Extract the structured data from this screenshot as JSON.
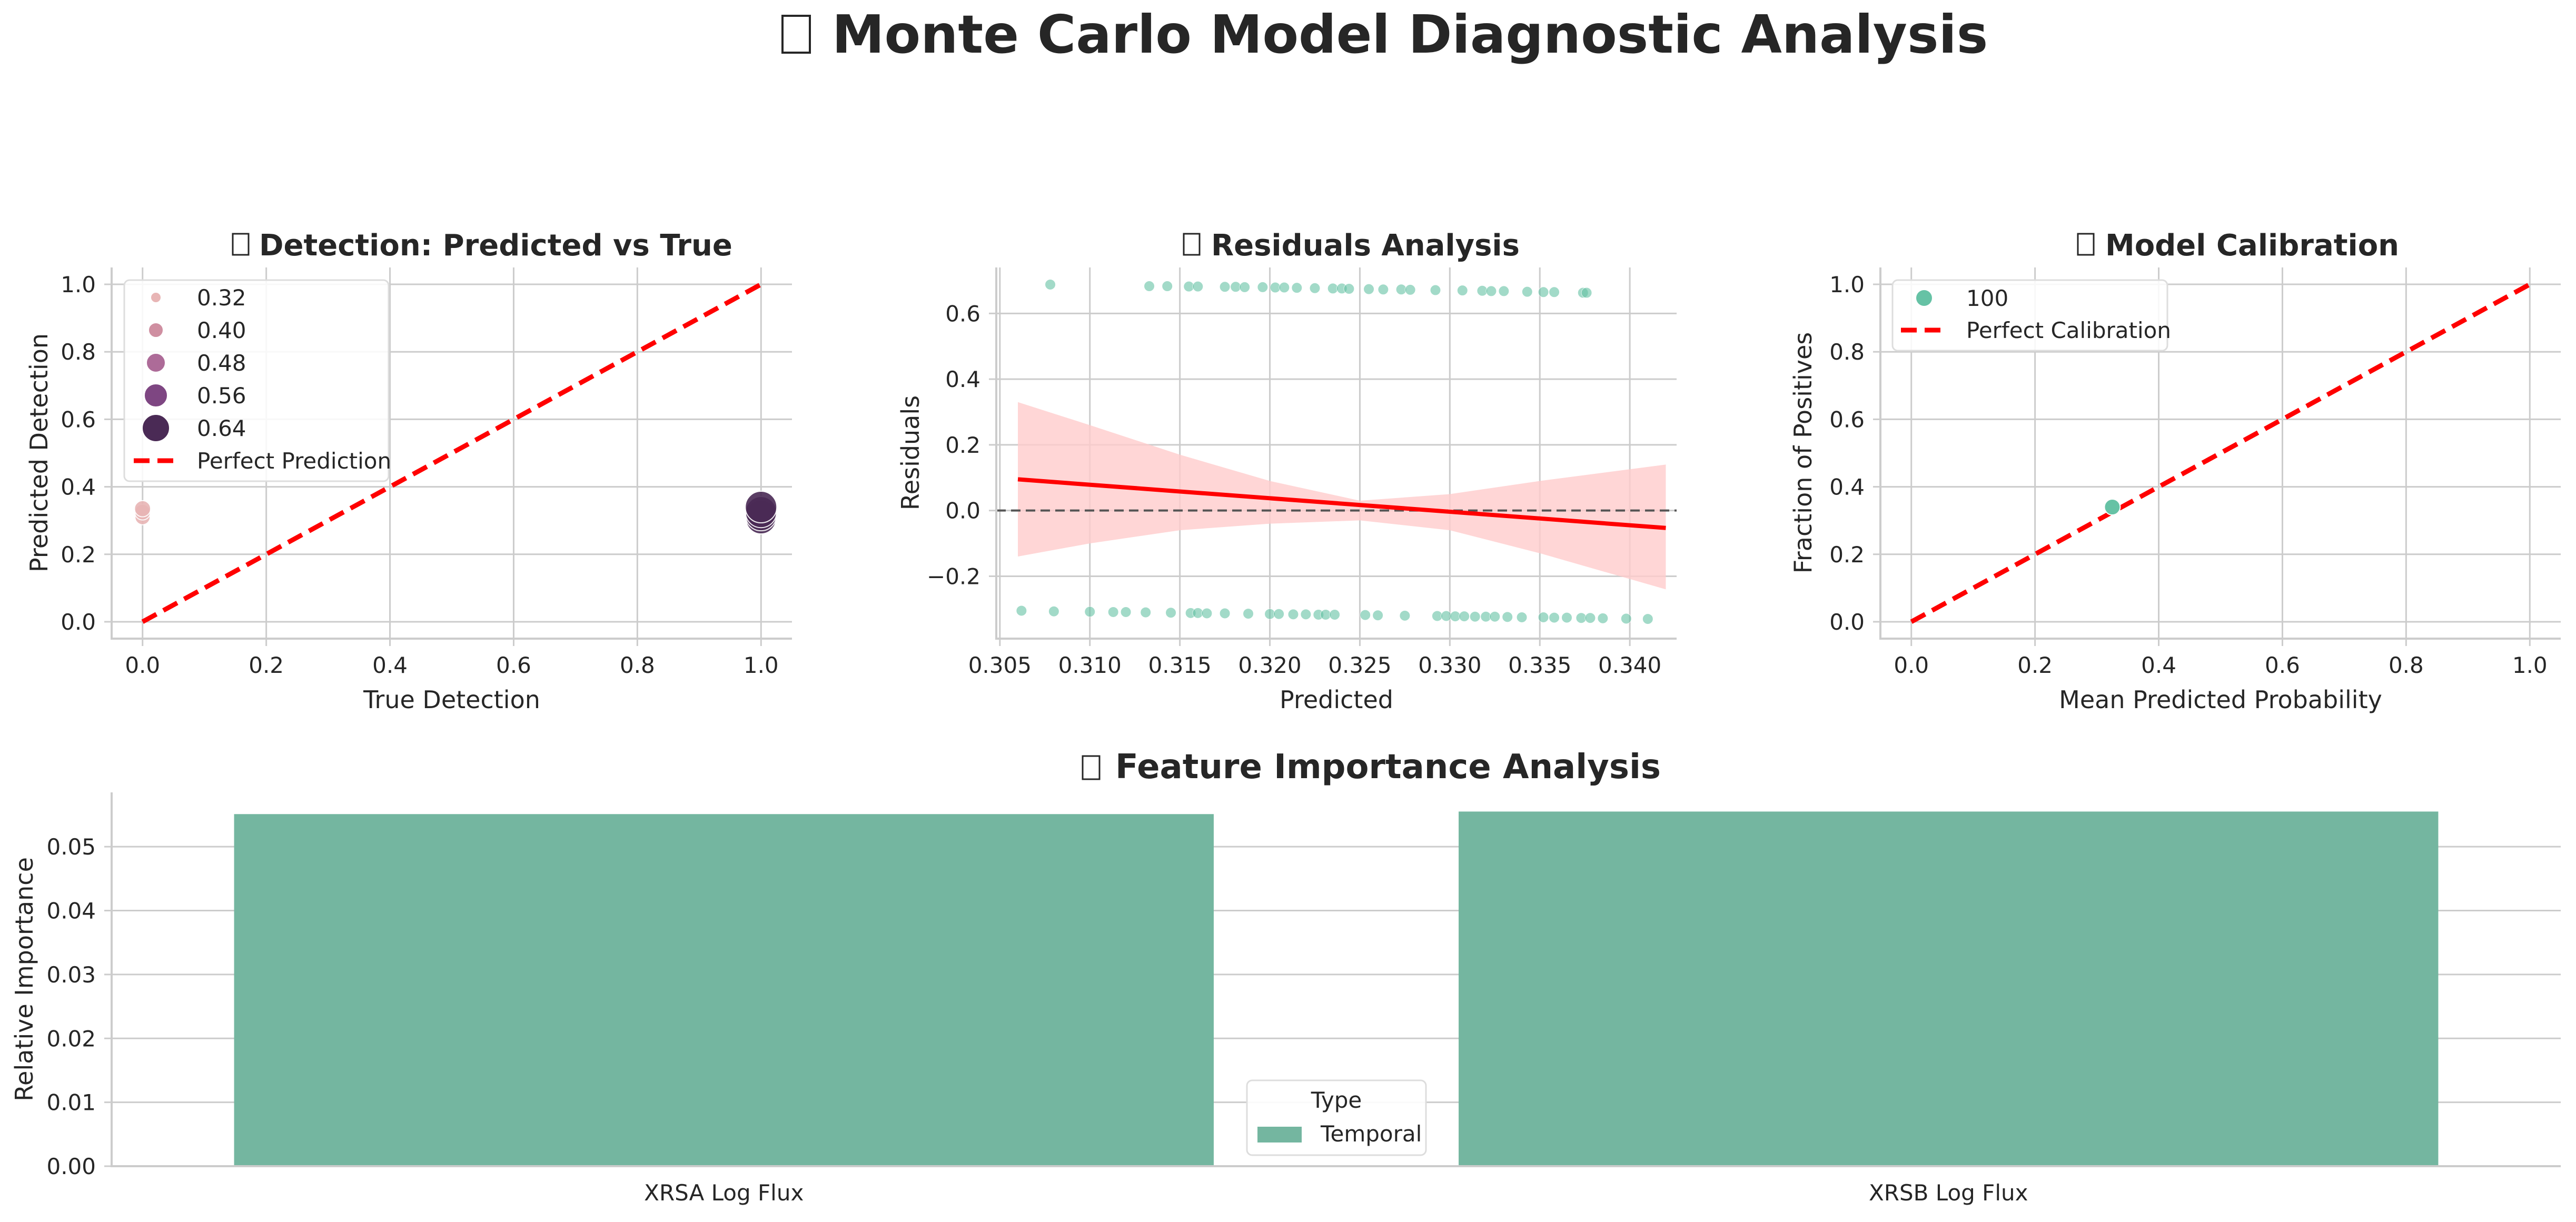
{
  "page_title": "Monte Carlo Model Diagnostic Analysis",
  "title_icon": "missing-glyph-icon",
  "colors": {
    "accent_green": "#66c2a5",
    "bar_green": "#74b6a0",
    "red": "#ff0000",
    "band_pink": "#ffcccc",
    "gray_dash": "#555555"
  },
  "chart_data": [
    {
      "id": "detection",
      "type": "scatter",
      "title": "Detection: Predicted vs True",
      "xlabel": "True Detection",
      "ylabel": "Predicted Detection",
      "xlim": [
        -0.05,
        1.05
      ],
      "ylim": [
        -0.05,
        1.05
      ],
      "xticks": [
        "0.0",
        "0.2",
        "0.4",
        "0.6",
        "0.8",
        "1.0"
      ],
      "yticks": [
        "0.0",
        "0.2",
        "0.4",
        "0.6",
        "0.8",
        "1.0"
      ],
      "grid": true,
      "points": [
        {
          "x": 0.0,
          "y": 0.31,
          "size": 0.31
        },
        {
          "x": 0.0,
          "y": 0.325,
          "size": 0.32
        },
        {
          "x": 0.0,
          "y": 0.335,
          "size": 0.33
        },
        {
          "x": 1.0,
          "y": 0.305,
          "size": 0.62
        },
        {
          "x": 1.0,
          "y": 0.315,
          "size": 0.63
        },
        {
          "x": 1.0,
          "y": 0.325,
          "size": 0.64
        },
        {
          "x": 1.0,
          "y": 0.34,
          "size": 0.65
        }
      ],
      "reference_line": {
        "label": "Perfect Prediction",
        "from": [
          0,
          0
        ],
        "to": [
          1,
          1
        ]
      },
      "legend": {
        "placement": "upper-left",
        "entries": [
          "0.32",
          "0.40",
          "0.48",
          "0.56",
          "0.64",
          "Perfect Prediction"
        ],
        "size_levels": [
          0.32,
          0.4,
          0.48,
          0.56,
          0.64
        ],
        "size_colors": [
          "#e8b5b5",
          "#cf8fa1",
          "#ad6b98",
          "#7e4682",
          "#4a2a55"
        ]
      }
    },
    {
      "id": "residuals",
      "type": "scatter",
      "title": "Residuals Analysis",
      "xlabel": "Predicted",
      "ylabel": "Residuals",
      "xlim": [
        0.3048,
        0.3426
      ],
      "ylim": [
        -0.39,
        0.74
      ],
      "xticks": [
        "0.305",
        "0.310",
        "0.315",
        "0.320",
        "0.325",
        "0.330",
        "0.335",
        "0.340"
      ],
      "yticks": [
        "−0.2",
        "0.0",
        "0.2",
        "0.4",
        "0.6"
      ],
      "grid": true,
      "points_upper": [
        [
          0.3078,
          0.688
        ],
        [
          0.3133,
          0.683
        ],
        [
          0.3143,
          0.683
        ],
        [
          0.3155,
          0.682
        ],
        [
          0.316,
          0.682
        ],
        [
          0.3175,
          0.681
        ],
        [
          0.3181,
          0.681
        ],
        [
          0.3186,
          0.68
        ],
        [
          0.3196,
          0.68
        ],
        [
          0.3203,
          0.679
        ],
        [
          0.3208,
          0.679
        ],
        [
          0.3215,
          0.678
        ],
        [
          0.3225,
          0.677
        ],
        [
          0.3235,
          0.676
        ],
        [
          0.324,
          0.676
        ],
        [
          0.3244,
          0.675
        ],
        [
          0.3255,
          0.674
        ],
        [
          0.3263,
          0.673
        ],
        [
          0.3273,
          0.673
        ],
        [
          0.3278,
          0.672
        ],
        [
          0.3292,
          0.671
        ],
        [
          0.3307,
          0.67
        ],
        [
          0.3318,
          0.669
        ],
        [
          0.3323,
          0.668
        ],
        [
          0.333,
          0.668
        ],
        [
          0.3343,
          0.666
        ],
        [
          0.3352,
          0.665
        ],
        [
          0.3358,
          0.665
        ],
        [
          0.3374,
          0.663
        ],
        [
          0.3376,
          0.663
        ]
      ],
      "points_lower": [
        [
          0.3062,
          -0.305
        ],
        [
          0.308,
          -0.307
        ],
        [
          0.31,
          -0.308
        ],
        [
          0.3113,
          -0.309
        ],
        [
          0.312,
          -0.309
        ],
        [
          0.3131,
          -0.31
        ],
        [
          0.3145,
          -0.311
        ],
        [
          0.3156,
          -0.312
        ],
        [
          0.316,
          -0.312
        ],
        [
          0.3165,
          -0.313
        ],
        [
          0.3175,
          -0.313
        ],
        [
          0.3188,
          -0.314
        ],
        [
          0.32,
          -0.315
        ],
        [
          0.3205,
          -0.315
        ],
        [
          0.3213,
          -0.316
        ],
        [
          0.322,
          -0.316
        ],
        [
          0.3227,
          -0.317
        ],
        [
          0.3231,
          -0.317
        ],
        [
          0.3236,
          -0.317
        ],
        [
          0.3253,
          -0.318
        ],
        [
          0.326,
          -0.319
        ],
        [
          0.3275,
          -0.32
        ],
        [
          0.3293,
          -0.321
        ],
        [
          0.3298,
          -0.321
        ],
        [
          0.3303,
          -0.322
        ],
        [
          0.3308,
          -0.322
        ],
        [
          0.3314,
          -0.323
        ],
        [
          0.332,
          -0.323
        ],
        [
          0.3325,
          -0.323
        ],
        [
          0.3332,
          -0.324
        ],
        [
          0.334,
          -0.325
        ],
        [
          0.3352,
          -0.325
        ],
        [
          0.3358,
          -0.326
        ],
        [
          0.3365,
          -0.326
        ],
        [
          0.3373,
          -0.327
        ],
        [
          0.3378,
          -0.327
        ],
        [
          0.3385,
          -0.328
        ],
        [
          0.3398,
          -0.329
        ],
        [
          0.341,
          -0.33
        ]
      ],
      "zero_line": 0.0,
      "regression": {
        "x": [
          0.306,
          0.342
        ],
        "y": [
          0.095,
          -0.053
        ]
      },
      "confidence_band": {
        "x": [
          0.306,
          0.31,
          0.315,
          0.32,
          0.325,
          0.33,
          0.335,
          0.342
        ],
        "upper": [
          0.33,
          0.26,
          0.17,
          0.09,
          0.03,
          0.05,
          0.09,
          0.14
        ],
        "lower": [
          -0.14,
          -0.1,
          -0.06,
          -0.04,
          -0.03,
          -0.06,
          -0.13,
          -0.24
        ]
      }
    },
    {
      "id": "calibration",
      "type": "scatter",
      "title": "Model Calibration",
      "xlabel": "Mean Predicted Probability",
      "ylabel": "Fraction of Positives",
      "xlim": [
        -0.05,
        1.05
      ],
      "ylim": [
        -0.05,
        1.05
      ],
      "xticks": [
        "0.0",
        "0.2",
        "0.4",
        "0.6",
        "0.8",
        "1.0"
      ],
      "yticks": [
        "0.0",
        "0.2",
        "0.4",
        "0.6",
        "0.8",
        "1.0"
      ],
      "grid": true,
      "points": [
        {
          "x": 0.325,
          "y": 0.34
        }
      ],
      "reference_line": {
        "label": "Perfect Calibration",
        "from": [
          0,
          0
        ],
        "to": [
          1,
          1
        ]
      },
      "legend": {
        "placement": "upper-left",
        "entries": [
          "100",
          "Perfect Calibration"
        ]
      }
    },
    {
      "id": "feature_importance",
      "type": "bar",
      "title": "Feature Importance Analysis",
      "xlabel": "",
      "ylabel": "Relative Importance",
      "categories": [
        "XRSA Log Flux",
        "XRSB Log Flux"
      ],
      "values": [
        0.0551,
        0.0555
      ],
      "ylim": [
        0,
        0.0585
      ],
      "yticks": [
        "0.00",
        "0.01",
        "0.02",
        "0.03",
        "0.04",
        "0.05"
      ],
      "grid": true,
      "legend": {
        "placement": "lower-center",
        "title": "Type",
        "entries": [
          "Temporal"
        ]
      }
    }
  ]
}
